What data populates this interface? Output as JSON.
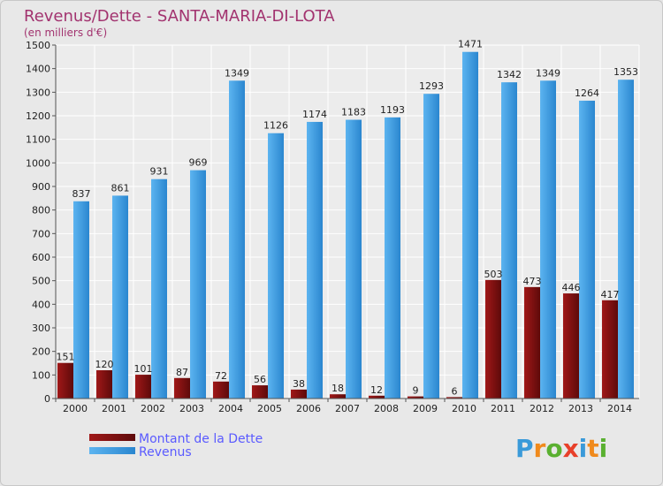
{
  "chart_data": {
    "type": "bar",
    "title": "Revenus/Dette - SANTA-MARIA-DI-LOTA",
    "subtitle": "(en milliers d'€)",
    "categories": [
      "2000",
      "2001",
      "2002",
      "2003",
      "2004",
      "2005",
      "2006",
      "2007",
      "2008",
      "2009",
      "2010",
      "2011",
      "2012",
      "2013",
      "2014"
    ],
    "series": [
      {
        "name": "Montant de la Dette",
        "color": "#7a1010",
        "values": [
          151,
          120,
          101,
          87,
          72,
          56,
          38,
          18,
          12,
          9,
          6,
          503,
          473,
          446,
          417
        ]
      },
      {
        "name": "Revenus",
        "color": "#3c9ee5",
        "values": [
          837,
          861,
          931,
          969,
          1349,
          1126,
          1174,
          1183,
          1193,
          1293,
          1471,
          1342,
          1349,
          1264,
          1353
        ]
      }
    ],
    "ylim": [
      0,
      1500
    ],
    "yticks": [
      0,
      100,
      200,
      300,
      400,
      500,
      600,
      700,
      800,
      900,
      1000,
      1100,
      1200,
      1300,
      1400,
      1500
    ],
    "grid": true,
    "legend_position": "bottom-left"
  },
  "logo": {
    "letters": [
      "P",
      "r",
      "o",
      "x",
      "i",
      "t",
      "i"
    ],
    "colors": [
      "#3a9ad9",
      "#f08a1c",
      "#5ab030",
      "#e8402a",
      "#3a9ad9",
      "#f08a1c",
      "#5ab030"
    ]
  }
}
